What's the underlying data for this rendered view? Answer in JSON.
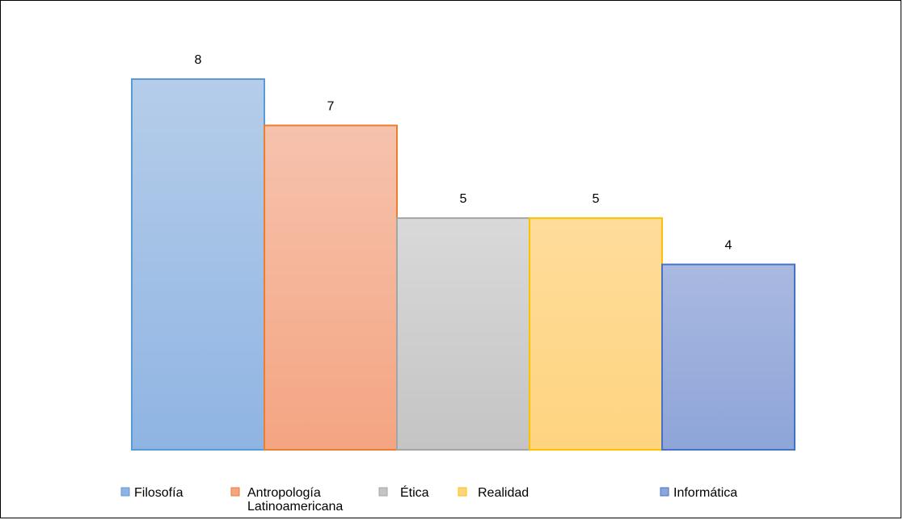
{
  "chart_data": {
    "type": "bar",
    "categories": [
      "Filosofía",
      "Antropología Latinoamericana",
      "Ética",
      "Realidad",
      "Informática"
    ],
    "values": [
      8,
      7,
      5,
      5,
      4
    ],
    "ylim": [
      0,
      8
    ],
    "grid": false,
    "legend_position": "bottom",
    "legend": [
      {
        "lines": [
          "Filosofía"
        ]
      },
      {
        "lines": [
          "Antropología",
          "Latinoamericana"
        ]
      },
      {
        "lines": [
          "Ética"
        ]
      },
      {
        "lines": [
          "Realidad"
        ]
      },
      {
        "lines": [
          "Informática"
        ]
      }
    ],
    "colors": [
      {
        "top": "#b5cde9",
        "bottom": "#8fb4e3",
        "stroke": "#5b9bd5"
      },
      {
        "top": "#f6c2ad",
        "bottom": "#f4a582",
        "stroke": "#ed7d31"
      },
      {
        "top": "#d9d9d9",
        "bottom": "#c4c4c4",
        "stroke": "#a5a5a5"
      },
      {
        "top": "#fedc9a",
        "bottom": "#fed47f",
        "stroke": "#ffc000"
      },
      {
        "top": "#a9b9e0",
        "bottom": "#8ea5d9",
        "stroke": "#4472c4"
      }
    ]
  }
}
